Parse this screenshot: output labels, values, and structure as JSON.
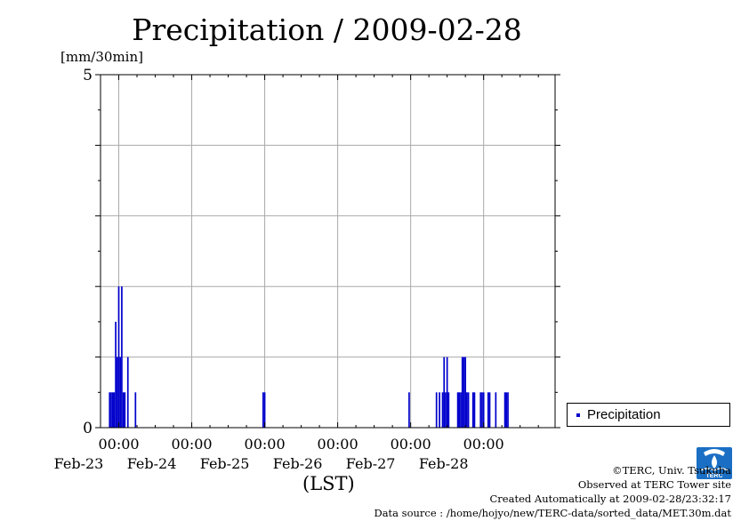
{
  "title": "Precipitation / 2009-02-28",
  "unit_label": "[mm/30min]",
  "xaxis_label": "(LST)",
  "legend": {
    "label": "Precipitation",
    "position": "right"
  },
  "credits": {
    "line1": "©TERC, Univ. Tsukuba",
    "line2": "Observed at TERC Tower site",
    "line3": "Created Automatically at 2009-02-28/23:32:17",
    "line4": "Data source : /home/hojyo/new/TERC-data/sorted_data/MET.30m.dat"
  },
  "logo_text": "TERC",
  "colors": {
    "series": "#0000cc",
    "grid": "#aaaaaa",
    "axis": "#000000"
  },
  "chart_data": {
    "type": "bar",
    "title": "Precipitation / 2009-02-28",
    "ylabel": "[mm/30min]",
    "xlabel": "(LST)",
    "ylim": [
      0,
      5
    ],
    "yticks": [
      0,
      5
    ],
    "xlim": [
      "2009-02-22 18:00",
      "2009-02-28 23:30"
    ],
    "xticks": [
      {
        "time": "2009-02-23 00:00",
        "label1": "00:00",
        "label2": "Feb-23"
      },
      {
        "time": "2009-02-24 00:00",
        "label1": "00:00",
        "label2": "Feb-24"
      },
      {
        "time": "2009-02-25 00:00",
        "label1": "00:00",
        "label2": "Feb-25"
      },
      {
        "time": "2009-02-26 00:00",
        "label1": "00:00",
        "label2": "Feb-26"
      },
      {
        "time": "2009-02-27 00:00",
        "label1": "00:00",
        "label2": "Feb-27"
      },
      {
        "time": "2009-02-28 00:00",
        "label1": "00:00",
        "label2": "Feb-28"
      }
    ],
    "grid": true,
    "series": [
      {
        "name": "Precipitation",
        "bar_width_minutes": 30,
        "points": [
          {
            "time": "2009-02-22 21:00",
            "value": 0.5
          },
          {
            "time": "2009-02-22 21:30",
            "value": 0.5
          },
          {
            "time": "2009-02-22 22:00",
            "value": 0.5
          },
          {
            "time": "2009-02-22 22:30",
            "value": 0.5
          },
          {
            "time": "2009-02-22 23:00",
            "value": 1.5
          },
          {
            "time": "2009-02-22 23:30",
            "value": 1.0
          },
          {
            "time": "2009-02-23 00:00",
            "value": 2.0
          },
          {
            "time": "2009-02-23 00:30",
            "value": 1.0
          },
          {
            "time": "2009-02-23 01:00",
            "value": 2.0
          },
          {
            "time": "2009-02-23 01:30",
            "value": 0.5
          },
          {
            "time": "2009-02-23 02:00",
            "value": 0.5
          },
          {
            "time": "2009-02-23 03:00",
            "value": 1.0
          },
          {
            "time": "2009-02-23 05:30",
            "value": 0.5
          },
          {
            "time": "2009-02-24 23:30",
            "value": 0.5
          },
          {
            "time": "2009-02-25 00:00",
            "value": 0.5
          },
          {
            "time": "2009-02-26 23:30",
            "value": 0.5
          },
          {
            "time": "2009-02-27 08:30",
            "value": 0.5
          },
          {
            "time": "2009-02-27 09:30",
            "value": 0.5
          },
          {
            "time": "2009-02-27 10:30",
            "value": 0.5
          },
          {
            "time": "2009-02-27 11:00",
            "value": 1.0
          },
          {
            "time": "2009-02-27 11:30",
            "value": 0.5
          },
          {
            "time": "2009-02-27 12:00",
            "value": 1.0
          },
          {
            "time": "2009-02-27 12:30",
            "value": 0.5
          },
          {
            "time": "2009-02-27 15:30",
            "value": 0.5
          },
          {
            "time": "2009-02-27 16:00",
            "value": 0.5
          },
          {
            "time": "2009-02-27 16:30",
            "value": 0.5
          },
          {
            "time": "2009-02-27 17:00",
            "value": 1.0
          },
          {
            "time": "2009-02-27 17:30",
            "value": 1.0
          },
          {
            "time": "2009-02-27 18:00",
            "value": 1.0
          },
          {
            "time": "2009-02-27 18:30",
            "value": 0.5
          },
          {
            "time": "2009-02-27 19:00",
            "value": 0.5
          },
          {
            "time": "2009-02-27 20:30",
            "value": 0.5
          },
          {
            "time": "2009-02-27 21:00",
            "value": 0.5
          },
          {
            "time": "2009-02-27 23:00",
            "value": 0.5
          },
          {
            "time": "2009-02-27 23:30",
            "value": 0.5
          },
          {
            "time": "2009-02-28 00:00",
            "value": 0.5
          },
          {
            "time": "2009-02-28 01:30",
            "value": 0.5
          },
          {
            "time": "2009-02-28 02:00",
            "value": 0.5
          },
          {
            "time": "2009-02-28 04:00",
            "value": 0.5
          },
          {
            "time": "2009-02-28 07:00",
            "value": 0.5
          },
          {
            "time": "2009-02-28 07:30",
            "value": 0.5
          },
          {
            "time": "2009-02-28 08:00",
            "value": 0.5
          }
        ]
      }
    ]
  }
}
